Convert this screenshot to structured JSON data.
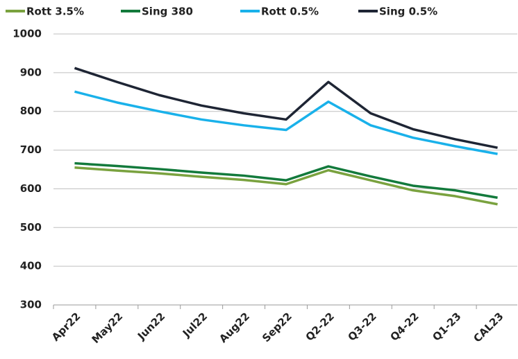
{
  "chart_data": {
    "type": "line",
    "categories": [
      "Apr22",
      "May22",
      "Jun22",
      "Jul22",
      "Aug22",
      "Sep22",
      "Q2-22",
      "Q3-22",
      "Q4-22",
      "Q1-23",
      "CAL23"
    ],
    "series": [
      {
        "name": "Rott 3.5%",
        "color": "#7aa23f",
        "values": [
          655,
          647,
          640,
          631,
          623,
          612,
          648,
          622,
          596,
          581,
          560
        ]
      },
      {
        "name": "Sing 380",
        "color": "#137a3c",
        "values": [
          666,
          659,
          651,
          642,
          634,
          622,
          658,
          632,
          608,
          596,
          577
        ]
      },
      {
        "name": "Rott 0.5%",
        "color": "#19b1ea",
        "values": [
          851,
          823,
          800,
          779,
          764,
          752,
          825,
          764,
          732,
          710,
          690
        ]
      },
      {
        "name": "Sing 0.5%",
        "color": "#1e2534",
        "values": [
          912,
          876,
          842,
          815,
          795,
          779,
          876,
          795,
          754,
          728,
          706
        ]
      }
    ],
    "ylim": [
      300,
      1000
    ],
    "yticks": [
      300,
      400,
      500,
      600,
      700,
      800,
      900,
      1000
    ],
    "grid": true
  }
}
